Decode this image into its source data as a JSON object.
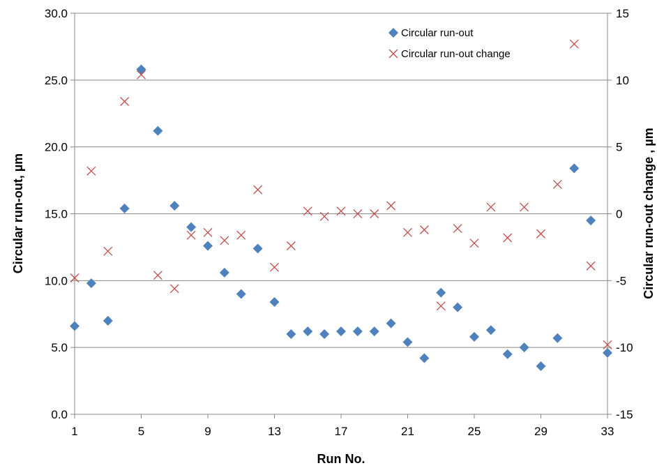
{
  "chart_data": {
    "type": "scatter",
    "xlabel": "Run No.",
    "ylabel_left": "Circular run-out, µm",
    "ylabel_right": "Circular run-out change , µm",
    "xlim": [
      1,
      33
    ],
    "ylim_left": [
      0,
      30
    ],
    "ylim_right": [
      -15,
      15
    ],
    "x_ticks": [
      "1",
      "5",
      "9",
      "13",
      "17",
      "21",
      "25",
      "29",
      "33"
    ],
    "y_left_ticks": [
      "0.0",
      "5.0",
      "10.0",
      "15.0",
      "20.0",
      "25.0",
      "30.0"
    ],
    "y_right_ticks": [
      "-15",
      "-10",
      "-5",
      "0",
      "5",
      "10",
      "15"
    ],
    "grid": "horizontal",
    "legend_position": "top-right",
    "series": [
      {
        "name": "Circular run-out",
        "axis": "left",
        "marker": "diamond",
        "color": "#4F81BD",
        "x": [
          1,
          2,
          3,
          4,
          5,
          6,
          7,
          8,
          9,
          10,
          11,
          12,
          13,
          14,
          15,
          16,
          17,
          18,
          19,
          20,
          21,
          22,
          23,
          24,
          25,
          26,
          27,
          28,
          29,
          30,
          31,
          32,
          33
        ],
        "y": [
          6.6,
          9.8,
          7.0,
          15.4,
          25.8,
          21.2,
          15.6,
          14.0,
          12.6,
          10.6,
          9.0,
          12.4,
          8.4,
          6.0,
          6.2,
          6.0,
          6.2,
          6.2,
          6.2,
          6.8,
          5.4,
          4.2,
          9.1,
          8.0,
          5.8,
          6.3,
          4.5,
          5.0,
          3.6,
          5.7,
          18.4,
          14.5,
          4.6
        ]
      },
      {
        "name": "Circular run-out change",
        "axis": "right",
        "marker": "x",
        "color": "#C0504D",
        "x": [
          1,
          2,
          3,
          4,
          5,
          6,
          7,
          8,
          9,
          10,
          11,
          12,
          13,
          14,
          15,
          16,
          17,
          18,
          19,
          20,
          21,
          22,
          23,
          24,
          25,
          26,
          27,
          28,
          29,
          30,
          31,
          32,
          33
        ],
        "y": [
          -4.8,
          3.2,
          -2.8,
          8.4,
          10.4,
          -4.6,
          -5.6,
          -1.6,
          -1.4,
          -2.0,
          -1.6,
          1.8,
          -4.0,
          -2.4,
          0.2,
          -0.2,
          0.2,
          0.0,
          0.0,
          0.6,
          -1.4,
          -1.2,
          -6.9,
          -1.1,
          -2.2,
          0.5,
          -1.8,
          0.5,
          -1.5,
          2.2,
          12.7,
          -3.9,
          -9.8
        ]
      }
    ]
  }
}
